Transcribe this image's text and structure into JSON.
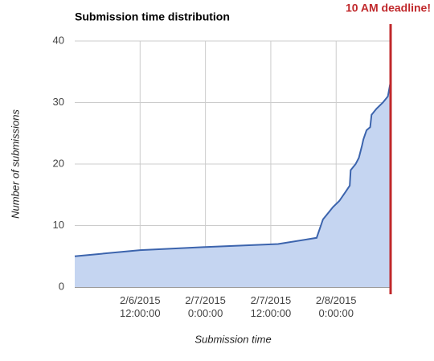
{
  "chart_data": {
    "type": "area",
    "title": "Submission time distribution",
    "x_label": "Submission time",
    "y_label": "Number of submissions",
    "x": [
      "2015-02-06T00:00",
      "2015-02-06T12:00",
      "2015-02-07T00:00",
      "2015-02-07T13:20",
      "2015-02-07T20:25",
      "2015-02-07T21:35",
      "2015-02-07T22:30",
      "2015-02-07T23:25",
      "2015-02-08T00:35",
      "2015-02-08T01:45",
      "2015-02-08T02:30",
      "2015-02-08T02:40",
      "2015-02-08T03:35",
      "2015-02-08T04:10",
      "2015-02-08T04:45",
      "2015-02-08T05:00",
      "2015-02-08T05:35",
      "2015-02-08T06:15",
      "2015-02-08T06:30",
      "2015-02-08T07:25",
      "2015-02-08T08:35",
      "2015-02-08T09:30",
      "2015-02-08T09:55"
    ],
    "values": [
      5,
      6,
      6.5,
      7,
      8,
      11,
      12,
      13,
      14,
      15.5,
      16.5,
      19,
      20,
      21,
      23,
      24,
      25.5,
      26,
      28,
      29,
      30,
      31,
      33
    ],
    "color": "#3c64ad",
    "fill": "#c5d5f1",
    "xlim": [
      "2015-02-06T00:00",
      "2015-02-08T10:00"
    ],
    "xticks": [
      {
        "value": "2015-02-06T12:00",
        "label": "2/6/2015\n12:00:00"
      },
      {
        "value": "2015-02-07T00:00",
        "label": "2/7/2015\n0:00:00"
      },
      {
        "value": "2015-02-07T12:00",
        "label": "2/7/2015\n12:00:00"
      },
      {
        "value": "2015-02-08T00:00",
        "label": "2/8/2015\n0:00:00"
      }
    ],
    "ylim": [
      0,
      40
    ],
    "yticks": [
      0,
      10,
      20,
      30,
      40
    ],
    "grid": true,
    "annotation": {
      "text": "10 AM deadline!",
      "x": "2015-02-08T10:00",
      "color": "#c0282b"
    }
  }
}
